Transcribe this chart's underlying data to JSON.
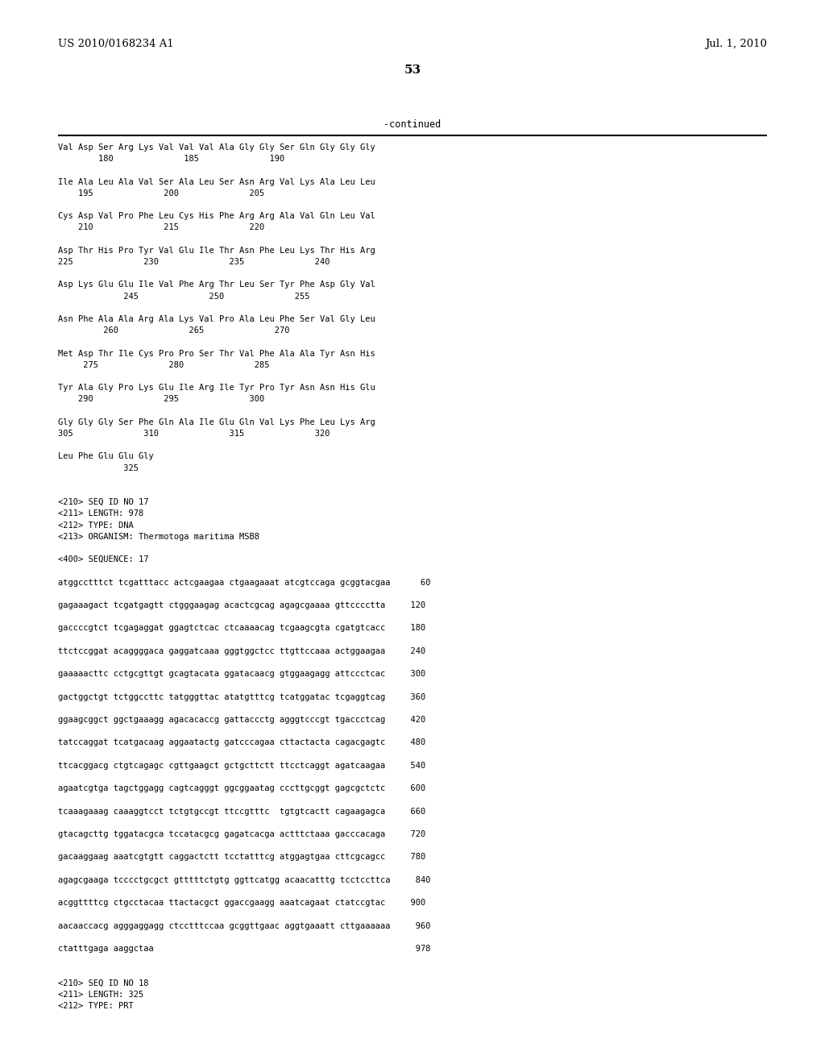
{
  "header_left": "US 2010/0168234 A1",
  "header_right": "Jul. 1, 2010",
  "page_number": "53",
  "continued_label": "-continued",
  "background_color": "#ffffff",
  "text_color": "#000000",
  "content_lines": [
    "Val Asp Ser Arg Lys Val Val Val Ala Gly Gly Ser Gln Gly Gly Gly",
    "        180              185              190",
    "",
    "Ile Ala Leu Ala Val Ser Ala Leu Ser Asn Arg Val Lys Ala Leu Leu",
    "    195              200              205",
    "",
    "Cys Asp Val Pro Phe Leu Cys His Phe Arg Arg Ala Val Gln Leu Val",
    "    210              215              220",
    "",
    "Asp Thr His Pro Tyr Val Glu Ile Thr Asn Phe Leu Lys Thr His Arg",
    "225              230              235              240",
    "",
    "Asp Lys Glu Glu Ile Val Phe Arg Thr Leu Ser Tyr Phe Asp Gly Val",
    "             245              250              255",
    "",
    "Asn Phe Ala Ala Arg Ala Lys Val Pro Ala Leu Phe Ser Val Gly Leu",
    "         260              265              270",
    "",
    "Met Asp Thr Ile Cys Pro Pro Ser Thr Val Phe Ala Ala Tyr Asn His",
    "     275              280              285",
    "",
    "Tyr Ala Gly Pro Lys Glu Ile Arg Ile Tyr Pro Tyr Asn Asn His Glu",
    "    290              295              300",
    "",
    "Gly Gly Gly Ser Phe Gln Ala Ile Glu Gln Val Lys Phe Leu Lys Arg",
    "305              310              315              320",
    "",
    "Leu Phe Glu Glu Gly",
    "             325",
    "",
    "",
    "<210> SEQ ID NO 17",
    "<211> LENGTH: 978",
    "<212> TYPE: DNA",
    "<213> ORGANISM: Thermotoga maritima MSB8",
    "",
    "<400> SEQUENCE: 17",
    "",
    "atggcctttct tcgatttacc actcgaagaa ctgaagaaat atcgtccaga gcggtacgaa      60",
    "",
    "gagaaagact tcgatgagtt ctgggaagag acactcgcag agagcgaaaa gttcccctta     120",
    "",
    "gaccccgtct tcgagaggat ggagtctcac ctcaaaacag tcgaagcgta cgatgtcacc     180",
    "",
    "ttctccggat acaggggaca gaggatcaaa gggtggctcc ttgttccaaa actggaagaa     240",
    "",
    "gaaaaacttc cctgcgttgt gcagtacata ggatacaacg gtggaagagg attccctcac     300",
    "",
    "gactggctgt tctggccttc tatgggttac atatgtttcg tcatggatac tcgaggtcag     360",
    "",
    "ggaagcggct ggctgaaagg agacacaccg gattaccctg agggtcccgt tgaccctcag     420",
    "",
    "tatccaggat tcatgacaag aggaatactg gatcccagaa cttactacta cagacgagtc     480",
    "",
    "ttcacggacg ctgtcagagc cgttgaagct gctgcttctt ttcctcaggt agatcaagaa     540",
    "",
    "agaatcgtga tagctggagg cagtcagggt ggcggaatag cccttgcggt gagcgctctc     600",
    "",
    "tcaaagaaag caaaggtcct tctgtgccgt ttccgtttc  tgtgtcactt cagaagagca     660",
    "",
    "gtacagcttg tggatacgca tccatacgcg gagatcacga actttctaaa gacccacaga     720",
    "",
    "gacaaggaag aaatcgtgtt caggactctt tcctatttcg atggagtgaa cttcgcagcc     780",
    "",
    "agagcgaaga tcccctgcgct gtttttctgtg ggttcatgg acaacatttg tcctccttca     840",
    "",
    "acggttttcg ctgcctacaa ttactacgct ggaccgaagg aaatcagaat ctatccgtac     900",
    "",
    "aacaaccacg agggaggagg ctcctttccaa gcggttgaac aggtgaaatt cttgaaaaaa     960",
    "",
    "ctatttgaga aaggctaa                                                    978",
    "",
    "",
    "<210> SEQ ID NO 18",
    "<211> LENGTH: 325",
    "<212> TYPE: PRT"
  ]
}
